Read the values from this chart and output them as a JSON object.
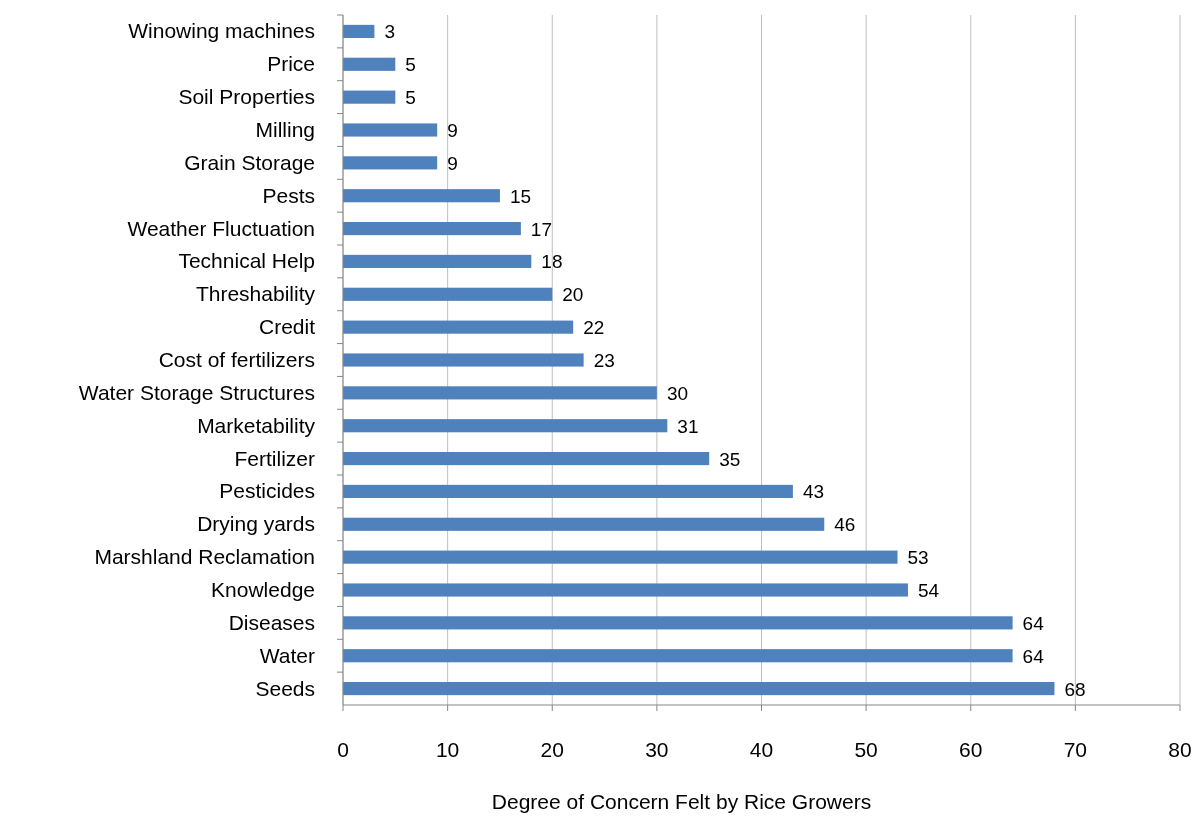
{
  "chart_data": {
    "type": "bar",
    "orientation": "horizontal",
    "xlabel": "Degree of Concern Felt by Rice Growers",
    "categories": [
      "Winowing machines",
      "Price",
      "Soil Properties",
      "Milling",
      "Grain Storage",
      "Pests",
      "Weather Fluctuation",
      "Technical Help",
      "Threshability",
      "Credit",
      "Cost of fertilizers",
      "Water Storage Structures",
      "Marketability",
      "Fertilizer",
      "Pesticides",
      "Drying yards",
      "Marshland Reclamation",
      "Knowledge",
      "Diseases",
      "Water",
      "Seeds"
    ],
    "values": [
      3,
      5,
      5,
      9,
      9,
      15,
      17,
      18,
      20,
      22,
      23,
      30,
      31,
      35,
      43,
      46,
      53,
      54,
      64,
      64,
      68
    ],
    "color": "#4f81bd",
    "xlim": [
      0,
      80
    ],
    "xticks": [
      0,
      10,
      20,
      30,
      40,
      50,
      60,
      70,
      80
    ],
    "grid": "x",
    "data_labels": true
  }
}
